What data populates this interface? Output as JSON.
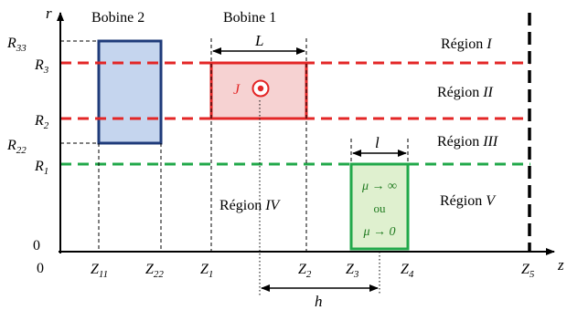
{
  "axes": {
    "r_label": "r",
    "z_label": "z",
    "origin_r": "0",
    "origin_z": "0"
  },
  "coils": {
    "coil2_label": "Bobine 2",
    "coil1_label": "Bobine 1",
    "length_label": "L",
    "current_label": "J",
    "shift_label": "h",
    "small_length_label": "l"
  },
  "regions": {
    "r1": {
      "prefix": "Région ",
      "numeral": "I"
    },
    "r2": {
      "prefix": "Région ",
      "numeral": "II"
    },
    "r3": {
      "prefix": "Région ",
      "numeral": "III"
    },
    "r4": {
      "prefix": "Région ",
      "numeral": "IV"
    },
    "r5": {
      "prefix": "Région ",
      "numeral": "V"
    }
  },
  "core": {
    "line1": "μ → ∞",
    "line2": "ou",
    "line3": "μ → 0"
  },
  "r_ticks": {
    "R33": {
      "base": "R",
      "sub": "33"
    },
    "R3": {
      "base": "R",
      "sub": "3"
    },
    "R2": {
      "base": "R",
      "sub": "2"
    },
    "R22": {
      "base": "R",
      "sub": "22"
    },
    "R1": {
      "base": "R",
      "sub": "1"
    },
    "zero": "0"
  },
  "z_ticks": {
    "Z11": {
      "base": "Z",
      "sub": "11"
    },
    "Z22": {
      "base": "Z",
      "sub": "22"
    },
    "Z1": {
      "base": "Z",
      "sub": "1"
    },
    "Z2": {
      "base": "Z",
      "sub": "2"
    },
    "Z3": {
      "base": "Z",
      "sub": "3"
    },
    "Z4": {
      "base": "Z",
      "sub": "4"
    },
    "Z5": {
      "base": "Z",
      "sub": "5"
    }
  },
  "colors": {
    "coil2_fill": "#c5d5ee",
    "coil2_stroke": "#1f3b7a",
    "coil1_fill": "#f6d2d2",
    "coil1_stroke": "#e32626",
    "core_fill": "#dff0cf",
    "core_stroke": "#21a84a",
    "red_dash": "#e32626",
    "green_dash": "#21a84a"
  }
}
